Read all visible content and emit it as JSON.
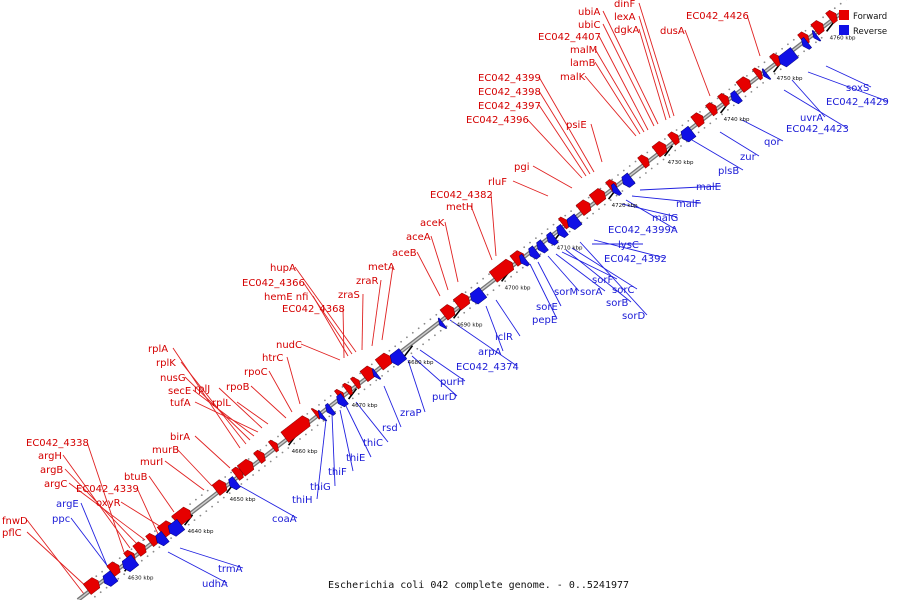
{
  "caption": "Escherichia coli 042 complete genome. - 0..5241977",
  "legend": [
    {
      "label": "Forward",
      "color": "#e60000"
    },
    {
      "label": "Reverse",
      "color": "#1010e6"
    }
  ],
  "ticks": [
    "4630 kbp",
    "4640 kbp",
    "4650 kbp",
    "4660 kbp",
    "4670 kbp",
    "4680 kbp",
    "4690 kbp",
    "4700 kbp",
    "4710 kbp",
    "4720 kbp",
    "4730 kbp",
    "4740 kbp",
    "4750 kbp",
    "4760 kbp"
  ],
  "forward_genes": [
    "fnwD",
    "pflC",
    "EC042_4338",
    "argH",
    "argB",
    "argC",
    "EC042_4339",
    "oxyR",
    "btuB",
    "murI",
    "murB",
    "birA",
    "rplA",
    "rplK",
    "nusG",
    "secE",
    "tufA",
    "rplJ",
    "rplL",
    "rpoB",
    "rpoC",
    "htrC",
    "nudC",
    "EC042_4368",
    "hemE nfi",
    "EC042_4366",
    "hupA",
    "zraS",
    "zraR",
    "metA",
    "aceB",
    "aceA",
    "aceK",
    "metH",
    "EC042_4382",
    "rluF",
    "pgi",
    "EC042_4396",
    "EC042_4397",
    "EC042_4398",
    "EC042_4399",
    "psiE",
    "malK",
    "lamB",
    "malM",
    "EC042_4407",
    "ubiC",
    "ubiA",
    "dgkA",
    "lexA",
    "dinF",
    "dusA",
    "EC042_4426"
  ],
  "reverse_genes": [
    "ppc",
    "argE",
    "udhA",
    "trmA",
    "coaA",
    "thiH",
    "thiG",
    "thiF",
    "thiE",
    "thiC",
    "rsd",
    "zraP",
    "purD",
    "purH",
    "EC042_4374",
    "arpA",
    "iclR",
    "pepE",
    "sorE",
    "sorM",
    "sorA",
    "sorF",
    "sorB",
    "sorC",
    "sorD",
    "EC042_4392",
    "lysC",
    "EC042_4399A",
    "malG",
    "malF",
    "malE",
    "plsB",
    "zur",
    "qor",
    "EC042_4423",
    "uvrA",
    "EC042_4429",
    "soxS"
  ]
}
